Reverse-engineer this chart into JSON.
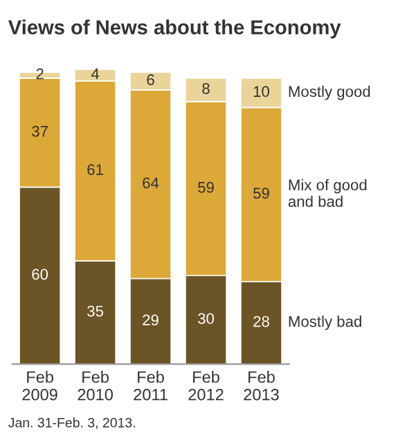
{
  "chart_data": {
    "type": "bar",
    "stacked": true,
    "title": "Views of News about the Economy",
    "categories": [
      "Feb\n2009",
      "Feb\n2010",
      "Feb\n2011",
      "Feb\n2012",
      "Feb\n2013"
    ],
    "series": [
      {
        "name": "Mostly bad",
        "color": "#6b5526",
        "values": [
          60,
          35,
          29,
          30,
          28
        ]
      },
      {
        "name": "Mix of good\nand bad",
        "color": "#dca838",
        "values": [
          37,
          61,
          64,
          59,
          59
        ]
      },
      {
        "name": "Mostly good",
        "color": "#ead49a",
        "values": [
          2,
          4,
          6,
          8,
          10
        ]
      }
    ],
    "data_labels": true,
    "grid": false,
    "legend": false,
    "annotations": [
      "Jan. 31-Feb. 3, 2013."
    ]
  }
}
